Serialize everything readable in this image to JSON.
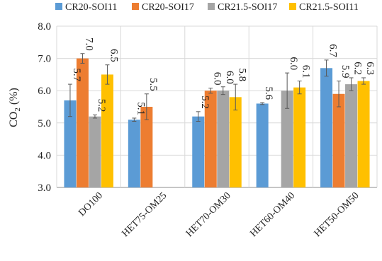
{
  "chart_data": {
    "type": "bar",
    "categories": [
      "DO100",
      "HET75-OM25",
      "HET70-OM30",
      "HET60-OM40",
      "HET50-OM50"
    ],
    "series": [
      {
        "name": "CR20-SOI11",
        "color": "#5B9BD5",
        "values": [
          5.7,
          5.1,
          5.2,
          5.6,
          6.7
        ],
        "labels": [
          "5.7",
          "5.1",
          "5.2",
          "5.6",
          "6.7"
        ],
        "errors": [
          0.5,
          0.05,
          0.15,
          0.03,
          0.25
        ]
      },
      {
        "name": "CR20-SOI17",
        "color": "#ED7D31",
        "values": [
          7.0,
          5.5,
          6.0,
          null,
          5.9
        ],
        "labels": [
          "7.0",
          "5.5",
          "6.0",
          null,
          "5.9"
        ],
        "errors": [
          0.15,
          0.4,
          0.08,
          null,
          0.4
        ]
      },
      {
        "name": "CR21.5-SOI17",
        "color": "#A5A5A5",
        "values": [
          5.2,
          null,
          6.0,
          6.0,
          6.2
        ],
        "labels": [
          "5.2",
          null,
          "6.0",
          "6.0",
          "6.2"
        ],
        "errors": [
          0.05,
          null,
          0.12,
          0.55,
          0.2
        ]
      },
      {
        "name": "CR21.5-SOI11",
        "color": "#FFC000",
        "values": [
          6.5,
          null,
          5.8,
          6.1,
          6.3
        ],
        "labels": [
          "6.5",
          null,
          "5.8",
          "6.1",
          "6.3"
        ],
        "errors": [
          0.3,
          null,
          0.4,
          0.2,
          0.1
        ]
      }
    ],
    "ylabel": "CO2 (%)",
    "ylabel_main": "CO",
    "ylabel_sub": "2",
    "ylabel_rest": " (%)",
    "ylim": [
      3.0,
      8.0
    ],
    "yticks": [
      "3.0",
      "4.0",
      "5.0",
      "6.0",
      "7.0",
      "8.0"
    ],
    "grid": true,
    "legend_position": "top"
  }
}
